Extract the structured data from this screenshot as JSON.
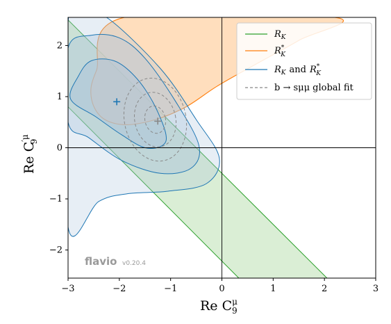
{
  "chart_data": {
    "type": "contour",
    "xlabel": "Re C₉^μ",
    "ylabel": "Re C′₉^μ",
    "xlim": [
      -3,
      3
    ],
    "ylim": [
      -2.55,
      2.55
    ],
    "x_ticks": [
      -3,
      -2,
      -1,
      0,
      1,
      2,
      3
    ],
    "y_ticks": [
      -2,
      -1,
      0,
      1,
      2
    ],
    "x_tick_labels": [
      "−3",
      "−2",
      "−1",
      "0",
      "1",
      "2",
      "3"
    ],
    "y_tick_labels": [
      "−2",
      "−1",
      "0",
      "1",
      "2"
    ],
    "reference_lines": {
      "x": 0,
      "y": 0
    },
    "grid": false,
    "legend_position": "top-right",
    "series": [
      {
        "name": "R_K",
        "legend_label": "RK",
        "color": "#2ca02c",
        "fill": "#d6ecd0",
        "band": {
          "upper": [
            [
              -3,
              2.5
            ],
            [
              2.05,
              -2.55
            ]
          ],
          "lower": [
            [
              -3,
              0.8
            ],
            [
              0.33,
              -2.55
            ]
          ]
        }
      },
      {
        "name": "R_K*",
        "legend_label": "RK*",
        "color": "#ff7f0e",
        "fill": "#ffd6ad",
        "region_outline": [
          [
            -2.45,
            1.5
          ],
          [
            -2.55,
            1.0
          ],
          [
            -2.35,
            0.6
          ],
          [
            -1.9,
            0.45
          ],
          [
            -1.3,
            0.55
          ],
          [
            -0.7,
            0.8
          ],
          [
            -0.1,
            1.2
          ],
          [
            0.6,
            1.6
          ],
          [
            1.5,
            2.1
          ],
          [
            2.2,
            2.55
          ],
          [
            -1.9,
            2.55
          ]
        ]
      },
      {
        "name": "R_K and R_K*",
        "legend_label": "RK and RK*",
        "color": "#1f77b4",
        "fill": "#aac3dc",
        "best_fit": [
          -2.05,
          0.9
        ],
        "contours_1sigma": [
          [
            -2.8,
            1.4
          ],
          [
            -2.55,
            1.7
          ],
          [
            -2.1,
            1.7
          ],
          [
            -1.7,
            1.4
          ],
          [
            -1.35,
            0.9
          ],
          [
            -1.1,
            0.3
          ],
          [
            -1.15,
            0.05
          ],
          [
            -1.5,
            0.0
          ],
          [
            -1.95,
            0.25
          ],
          [
            -2.45,
            0.6
          ],
          [
            -2.95,
            0.95
          ]
        ],
        "contours_2sigma": [
          [
            -3.0,
            1.95
          ],
          [
            -2.55,
            2.2
          ],
          [
            -2.0,
            2.15
          ],
          [
            -1.5,
            1.75
          ],
          [
            -0.9,
            0.9
          ],
          [
            -0.45,
            0.05
          ],
          [
            -0.6,
            -0.4
          ],
          [
            -1.2,
            -0.5
          ],
          [
            -1.95,
            -0.25
          ],
          [
            -2.6,
            0.2
          ],
          [
            -3.0,
            0.5
          ]
        ],
        "contours_3sigma": [
          [
            -3.0,
            2.45
          ],
          [
            -2.7,
            2.55
          ],
          [
            -2.25,
            2.55
          ],
          [
            -1.2,
            1.55
          ],
          [
            -0.5,
            0.55
          ],
          [
            -0.05,
            -0.2
          ],
          [
            -0.3,
            -0.7
          ],
          [
            -1.05,
            -0.85
          ],
          [
            -1.85,
            -0.9
          ],
          [
            -2.4,
            -1.05
          ],
          [
            -3.0,
            -1.55
          ]
        ]
      },
      {
        "name": "b → sμμ global fit",
        "legend_label": "b → sμμ global fit",
        "color": "#888888",
        "dashed": true,
        "best_fit": [
          -1.25,
          0.52
        ],
        "center": [
          -1.3,
          0.55
        ],
        "radii_x": [
          0.2,
          0.4,
          0.6
        ],
        "radii_y": [
          0.27,
          0.54,
          0.82
        ]
      }
    ],
    "markers": [
      {
        "series": "R_K and R_K*",
        "x": -2.05,
        "y": 0.9,
        "shape": "+"
      },
      {
        "series": "b → sμμ global fit",
        "x": -1.25,
        "y": 0.52,
        "shape": "+"
      }
    ]
  },
  "watermark": {
    "name": "flavio",
    "version": "v0.20.4"
  },
  "legend": {
    "rk": "R",
    "rk_sub": "K",
    "rkstar": "R",
    "rkstar_sub": "K",
    "rkstar_sup": "*",
    "combined_a": "R",
    "combined_a_sub": "K",
    "combined_and": "and",
    "combined_b": "R",
    "combined_b_sub": "K",
    "combined_b_sup": "*",
    "global": "b → sμμ global fit"
  },
  "axis_titles": {
    "x_main": "Re C",
    "x_sub": "9",
    "x_sup": "μ",
    "y_main": "Re C",
    "y_sub": "9",
    "y_sup": "′μ"
  }
}
